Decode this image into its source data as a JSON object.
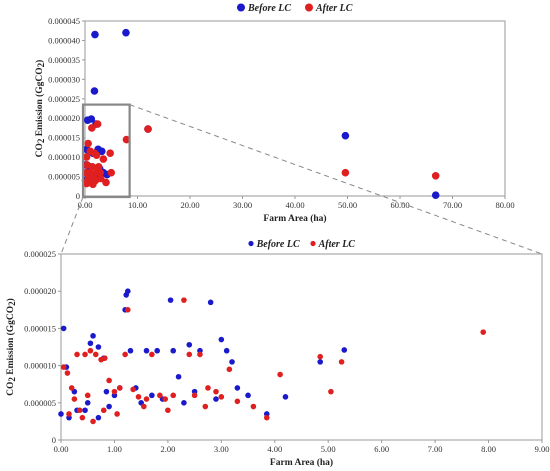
{
  "figure": {
    "legend": [
      "Before LC",
      "After LC"
    ],
    "colors": {
      "before": "#1a1acc",
      "after": "#e02020",
      "zoom_box": "#888888",
      "axis": "#999999"
    }
  },
  "chart_data": [
    {
      "type": "scatter",
      "name": "overview",
      "xlabel": "Farm Area (ha)",
      "ylabel": "CO2 Emission (GgCO2)",
      "xlim": [
        0,
        80
      ],
      "ylim": [
        0,
        4.5e-05
      ],
      "x_ticks": [
        "0.00",
        "10.00",
        "20.00",
        "30.00",
        "40.00",
        "50.00",
        "60.00",
        "70.00",
        "80.00"
      ],
      "y_ticks": [
        "0",
        "0.000005",
        "0.000010",
        "0.000015",
        "0.000020",
        "0.000025",
        "0.000030",
        "0.000035",
        "0.000040",
        "0.000045"
      ],
      "legend_position": "top-center",
      "grid": false,
      "zoom_box": {
        "x": [
          0,
          8.5
        ],
        "y": [
          0,
          2.35e-05
        ]
      },
      "series": [
        {
          "name": "Before LC",
          "color": "#1a1acc",
          "points": [
            [
              1.9,
              4.15e-05
            ],
            [
              7.8,
              4.2e-05
            ],
            [
              1.8,
              2.7e-05
            ],
            [
              0.5,
              1.95e-05
            ],
            [
              1.2,
              1.98e-05
            ],
            [
              12.0,
              1.72e-05
            ],
            [
              2.1,
              1.85e-05
            ],
            [
              49.6,
              1.55e-05
            ],
            [
              66.8,
              2e-07
            ],
            [
              0.3,
              1.2e-05
            ],
            [
              0.8,
              1.15e-05
            ],
            [
              1.5,
              1.1e-05
            ],
            [
              2.5,
              1.2e-05
            ],
            [
              3.2,
              1.15e-05
            ],
            [
              0.2,
              8e-06
            ],
            [
              0.9,
              7.5e-06
            ],
            [
              2.8,
              7e-06
            ],
            [
              0.6,
              6e-06
            ],
            [
              1.8,
              5e-06
            ],
            [
              0.1,
              4e-06
            ],
            [
              1.2,
              3.5e-06
            ],
            [
              3.5,
              6e-06
            ],
            [
              4.2,
              5.5e-06
            ]
          ]
        },
        {
          "name": "After LC",
          "color": "#e02020",
          "points": [
            [
              1.3,
              1.75e-05
            ],
            [
              2.4,
              1.85e-05
            ],
            [
              12.0,
              1.72e-05
            ],
            [
              7.9,
              1.45e-05
            ],
            [
              49.6,
              6e-06
            ],
            [
              66.8,
              5.2e-06
            ],
            [
              0.6,
              1.35e-05
            ],
            [
              1.0,
              1.15e-05
            ],
            [
              1.8,
              1.1e-05
            ],
            [
              0.3,
              1e-05
            ],
            [
              2.2,
              1.05e-05
            ],
            [
              3.5,
              9.5e-06
            ],
            [
              4.8,
              1.1e-05
            ],
            [
              0.4,
              8e-06
            ],
            [
              1.4,
              7.5e-06
            ],
            [
              2.6,
              7.5e-06
            ],
            [
              0.2,
              6e-06
            ],
            [
              0.9,
              6e-06
            ],
            [
              1.7,
              5.5e-06
            ],
            [
              2.9,
              6e-06
            ],
            [
              0.5,
              4e-06
            ],
            [
              1.1,
              4.5e-06
            ],
            [
              2.0,
              4e-06
            ],
            [
              0.3,
              3.2e-06
            ],
            [
              1.5,
              3e-06
            ],
            [
              3.0,
              4.5e-06
            ],
            [
              4.0,
              3.5e-06
            ],
            [
              5.0,
              6e-06
            ],
            [
              0.7,
              5e-06
            ],
            [
              2.3,
              6.5e-06
            ]
          ]
        }
      ]
    },
    {
      "type": "scatter",
      "name": "zoom",
      "xlabel": "Farm Area (ha)",
      "ylabel": "CO2 Emission (GgCO2)",
      "xlim": [
        0,
        9
      ],
      "ylim": [
        0,
        2.5e-05
      ],
      "x_ticks": [
        "0.00",
        "1.00",
        "2.00",
        "3.00",
        "4.00",
        "5.00",
        "6.00",
        "7.00",
        "8.00",
        "9.00"
      ],
      "y_ticks": [
        "0",
        "0.000005",
        "0.000010",
        "0.000015",
        "0.000020",
        "0.000025"
      ],
      "legend_position": "top-center",
      "grid": false,
      "series": [
        {
          "name": "Before LC",
          "color": "#1a1acc",
          "points": [
            [
              0.05,
              1.5e-05
            ],
            [
              0.1,
              9.8e-06
            ],
            [
              0.0,
              3.5e-06
            ],
            [
              0.15,
              3e-06
            ],
            [
              0.3,
              4e-06
            ],
            [
              0.45,
              4e-06
            ],
            [
              0.55,
              1.3e-05
            ],
            [
              0.6,
              1.4e-05
            ],
            [
              0.7,
              1.25e-05
            ],
            [
              0.8,
              1.1e-05
            ],
            [
              0.85,
              6.5e-06
            ],
            [
              1.0,
              6e-06
            ],
            [
              1.1,
              7e-06
            ],
            [
              1.2,
              1.75e-05
            ],
            [
              1.22,
              1.95e-05
            ],
            [
              1.25,
              2e-05
            ],
            [
              1.3,
              1.2e-05
            ],
            [
              1.4,
              7e-06
            ],
            [
              1.6,
              1.2e-05
            ],
            [
              1.7,
              6e-06
            ],
            [
              1.8,
              1.2e-05
            ],
            [
              1.9,
              5.5e-06
            ],
            [
              2.05,
              1.88e-05
            ],
            [
              2.1,
              1.2e-05
            ],
            [
              2.2,
              8.5e-06
            ],
            [
              2.4,
              1.28e-05
            ],
            [
              2.5,
              6.5e-06
            ],
            [
              2.6,
              1.2e-05
            ],
            [
              2.8,
              1.85e-05
            ],
            [
              3.0,
              1.35e-05
            ],
            [
              3.1,
              1.2e-05
            ],
            [
              3.2,
              1.05e-05
            ],
            [
              3.3,
              7e-06
            ],
            [
              3.5,
              6e-06
            ],
            [
              3.85,
              3.5e-06
            ],
            [
              4.2,
              5.8e-06
            ],
            [
              4.85,
              1.05e-05
            ],
            [
              5.3,
              1.21e-05
            ],
            [
              0.25,
              6.5e-06
            ],
            [
              0.5,
              5e-06
            ],
            [
              0.9,
              4.5e-06
            ],
            [
              1.5,
              5e-06
            ],
            [
              2.3,
              5e-06
            ],
            [
              2.9,
              5.5e-06
            ],
            [
              0.7,
              3e-06
            ]
          ]
        },
        {
          "name": "After LC",
          "color": "#e02020",
          "points": [
            [
              0.05,
              9.8e-06
            ],
            [
              0.12,
              9e-06
            ],
            [
              0.2,
              7e-06
            ],
            [
              0.3,
              1.15e-05
            ],
            [
              0.35,
              4e-06
            ],
            [
              0.45,
              1.15e-05
            ],
            [
              0.55,
              1.2e-05
            ],
            [
              0.65,
              1.15e-05
            ],
            [
              0.75,
              1.08e-05
            ],
            [
              0.82,
              1.1e-05
            ],
            [
              0.9,
              8e-06
            ],
            [
              1.0,
              6.5e-06
            ],
            [
              1.1,
              7e-06
            ],
            [
              1.2,
              1.15e-05
            ],
            [
              1.25,
              1.75e-05
            ],
            [
              1.35,
              6.8e-06
            ],
            [
              1.45,
              5.8e-06
            ],
            [
              1.55,
              4.5e-06
            ],
            [
              1.7,
              1.15e-05
            ],
            [
              1.85,
              6e-06
            ],
            [
              1.95,
              5.5e-06
            ],
            [
              2.1,
              6e-06
            ],
            [
              2.3,
              1.88e-05
            ],
            [
              2.4,
              1.15e-05
            ],
            [
              2.5,
              6e-06
            ],
            [
              2.6,
              1.15e-05
            ],
            [
              2.75,
              7e-06
            ],
            [
              2.9,
              6.5e-06
            ],
            [
              3.0,
              5.8e-06
            ],
            [
              3.15,
              9.5e-06
            ],
            [
              3.3,
              5.2e-06
            ],
            [
              3.6,
              4.5e-06
            ],
            [
              3.85,
              3e-06
            ],
            [
              4.1,
              8.8e-06
            ],
            [
              4.85,
              1.12e-05
            ],
            [
              5.05,
              6.5e-06
            ],
            [
              5.25,
              1.05e-05
            ],
            [
              7.9,
              1.45e-05
            ],
            [
              0.15,
              3.5e-06
            ],
            [
              0.4,
              3e-06
            ],
            [
              0.6,
              2.5e-06
            ],
            [
              0.8,
              4e-06
            ],
            [
              1.05,
              3.5e-06
            ],
            [
              2.0,
              4e-06
            ],
            [
              2.7,
              4.5e-06
            ],
            [
              0.25,
              5.5e-06
            ],
            [
              0.5,
              6e-06
            ],
            [
              1.6,
              5.5e-06
            ]
          ]
        }
      ]
    }
  ]
}
